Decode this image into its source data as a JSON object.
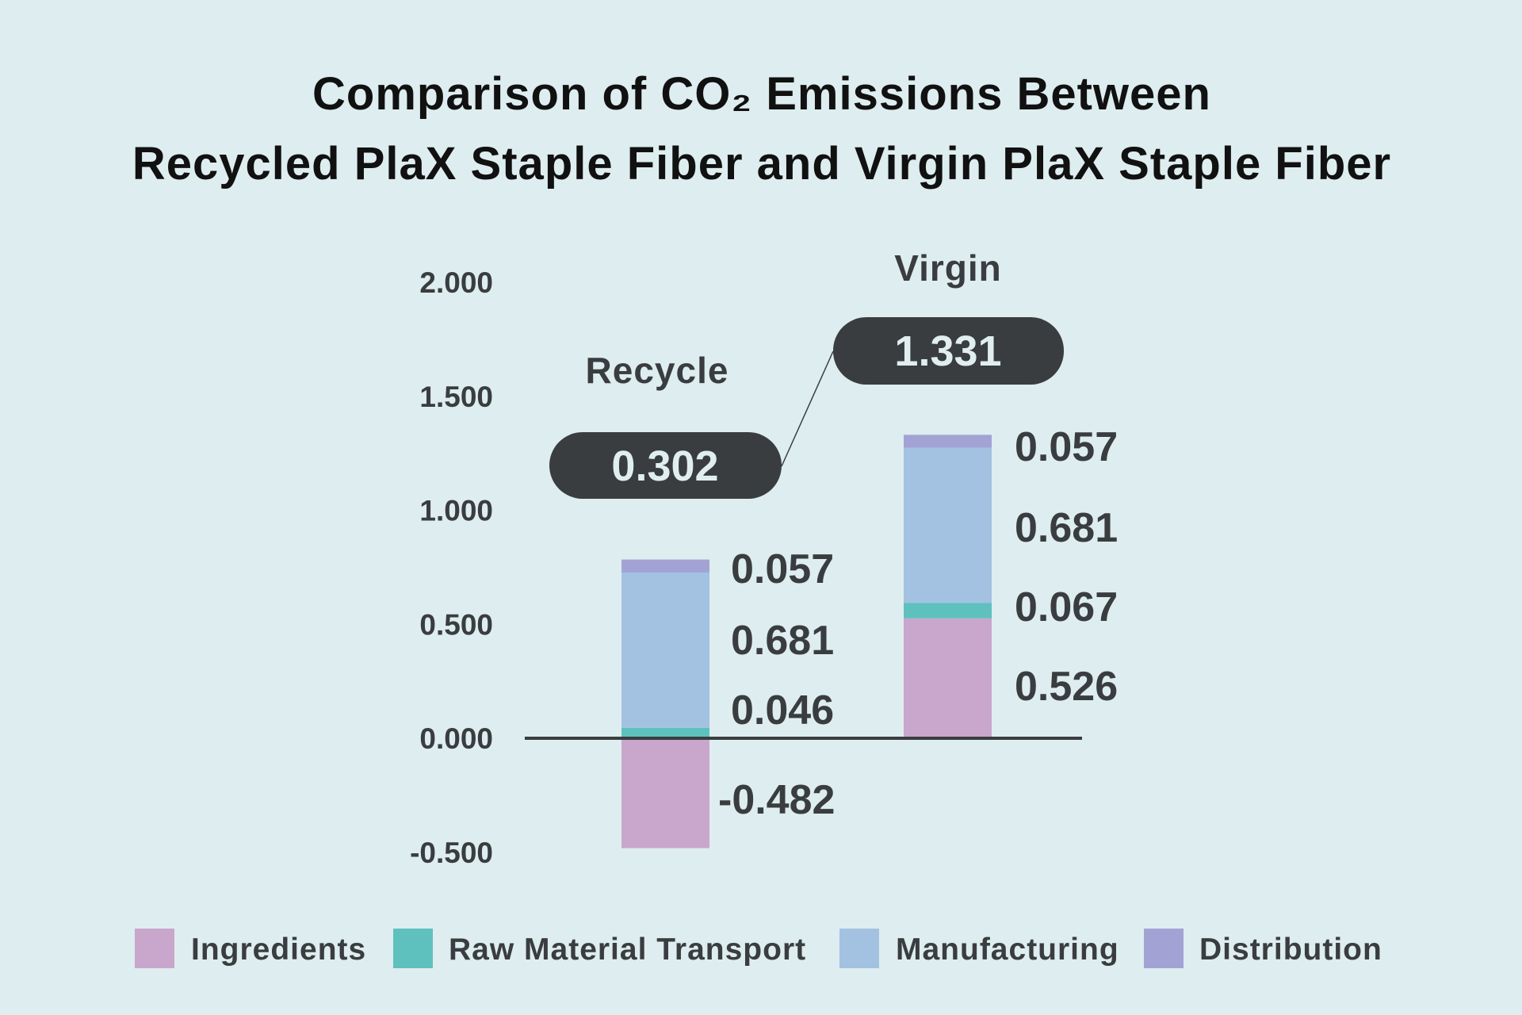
{
  "chart_data": {
    "type": "bar",
    "stacked": true,
    "title_lines": [
      "Comparison of CO₂ Emissions Between",
      "Recycled PlaX Staple Fiber and Virgin PlaX Staple Fiber"
    ],
    "xlabel": "",
    "ylabel": "",
    "ylim": [
      -0.5,
      2.0
    ],
    "yticks": [
      "2.000",
      "1.500",
      "1.000",
      "0.500",
      "0.000",
      "-0.500"
    ],
    "ytick_values": [
      2.0,
      1.5,
      1.0,
      0.5,
      0.0,
      -0.5
    ],
    "grid": false,
    "legend_position": "bottom",
    "categories": [
      "Recycle",
      "Virgin"
    ],
    "totals": [
      "0.302",
      "1.331"
    ],
    "series": [
      {
        "name": "Ingredients",
        "color": "#c9a6cc",
        "values": [
          -0.482,
          0.526
        ],
        "labels": [
          "-0.482",
          "0.526"
        ]
      },
      {
        "name": "Raw Material Transport",
        "color": "#5fc1be",
        "values": [
          0.046,
          0.067
        ],
        "labels": [
          "0.046",
          "0.067"
        ]
      },
      {
        "name": "Manufacturing",
        "color": "#a3c2e1",
        "values": [
          0.681,
          0.681
        ],
        "labels": [
          "0.681",
          "0.681"
        ]
      },
      {
        "name": "Distribution",
        "color": "#a2a3d4",
        "values": [
          0.057,
          0.057
        ],
        "labels": [
          "0.057",
          "0.057"
        ]
      }
    ]
  }
}
